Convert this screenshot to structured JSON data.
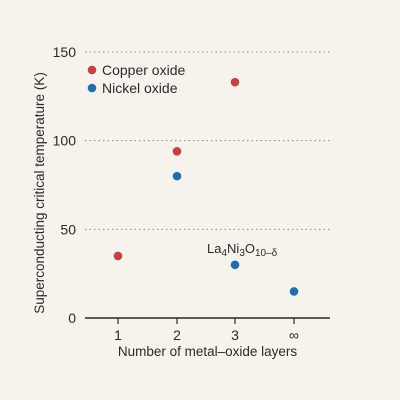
{
  "chart_data": {
    "type": "scatter",
    "xlabel": "Number of metal–oxide layers",
    "ylabel": "Superconducting critical temperature (K)",
    "x_categories": [
      "1",
      "2",
      "3",
      "∞"
    ],
    "ylim": [
      0,
      150
    ],
    "yticks": [
      0,
      50,
      100,
      150
    ],
    "grid": "horizontal dotted at 50, 100, 150",
    "legend_position": "top-left",
    "series": [
      {
        "name": "Copper oxide",
        "color": "#c8403f",
        "points": [
          {
            "x": "1",
            "y": 35
          },
          {
            "x": "2",
            "y": 94
          },
          {
            "x": "3",
            "y": 133
          }
        ]
      },
      {
        "name": "Nickel oxide",
        "color": "#1f6fb0",
        "points": [
          {
            "x": "2",
            "y": 80
          },
          {
            "x": "3",
            "y": 30
          },
          {
            "x": "∞",
            "y": 15
          }
        ]
      }
    ],
    "annotations": [
      {
        "text_parts": [
          {
            "text": "La",
            "sub": false
          },
          {
            "text": "4",
            "sub": true
          },
          {
            "text": "Ni",
            "sub": false
          },
          {
            "text": "3",
            "sub": true
          },
          {
            "text": "O",
            "sub": false
          },
          {
            "text": "10–δ",
            "sub": true
          }
        ],
        "target_series": "Nickel oxide",
        "target_x": "3",
        "target_y": 30
      }
    ]
  }
}
